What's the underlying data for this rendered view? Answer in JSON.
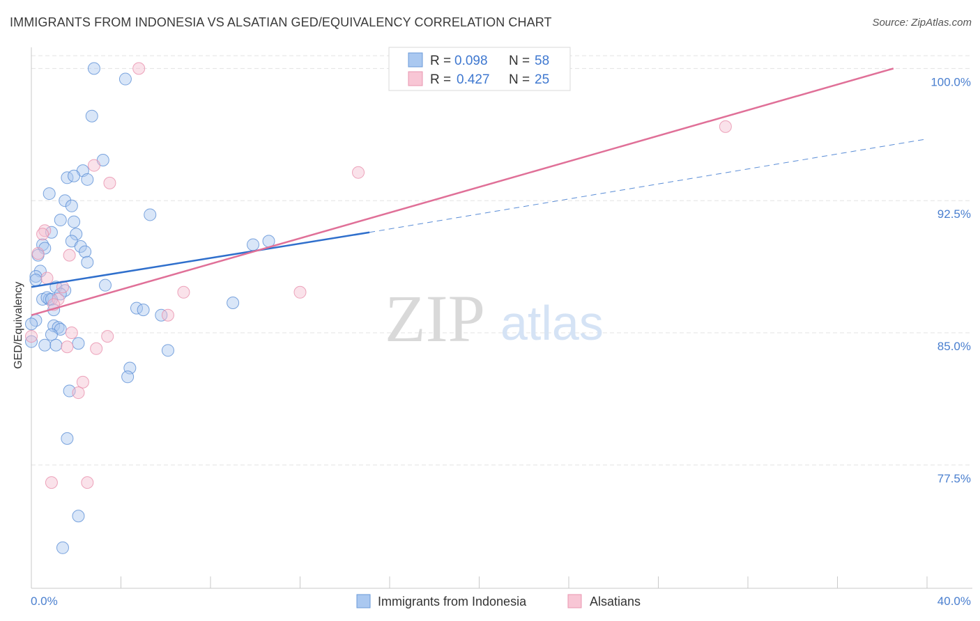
{
  "header": {
    "title": "IMMIGRANTS FROM INDONESIA VS ALSATIAN GED/EQUIVALENCY CORRELATION CHART",
    "source": "Source: ZipAtlas.com"
  },
  "watermark": {
    "zip": "ZIP",
    "atlas": "atlas"
  },
  "colors": {
    "blue": "#5b8fd6",
    "blue_fill": "#aac8f0",
    "blue_line": "#2f6fcc",
    "pink": "#e88fab",
    "pink_fill": "#f5bfd0",
    "pink_line": "#e07098",
    "axis_text": "#4a7fcf",
    "grid": "#e3e3e3"
  },
  "legend_top": {
    "rows": [
      {
        "r_label": "R =",
        "r_value": "0.098",
        "n_label": "N =",
        "n_value": "58"
      },
      {
        "r_label": "R =",
        "r_value": "0.427",
        "n_label": "N =",
        "n_value": "25"
      }
    ]
  },
  "legend_bottom": {
    "items": [
      "Immigrants from Indonesia",
      "Alsatians"
    ]
  },
  "chart_data": {
    "type": "scatter",
    "title": "IMMIGRANTS FROM INDONESIA VS ALSATIAN GED/EQUIVALENCY CORRELATION CHART",
    "xlabel": "",
    "ylabel": "GED/Equivalency",
    "xlim": [
      0,
      40
    ],
    "ylim": [
      70.5,
      101.2
    ],
    "x_tick_labels": [
      "0.0%",
      "40.0%"
    ],
    "y_ticks": [
      77.5,
      85.0,
      92.5,
      100.0
    ],
    "y_tick_labels": [
      "77.5%",
      "85.0%",
      "92.5%",
      "100.0%"
    ],
    "grid": true,
    "legend_placement": "top-center",
    "series": [
      {
        "name": "Immigrants from Indonesia",
        "r": 0.098,
        "n": 58,
        "trend": {
          "x0": 0.0,
          "y0": 87.6,
          "x1": 15.1,
          "y1": 90.7,
          "dash_x1": 40.0,
          "dash_y1": 96.0
        },
        "points": [
          {
            "x": 2.8,
            "y": 100.0
          },
          {
            "x": 4.2,
            "y": 99.4
          },
          {
            "x": 2.7,
            "y": 97.3
          },
          {
            "x": 3.2,
            "y": 94.8
          },
          {
            "x": 2.3,
            "y": 94.2
          },
          {
            "x": 1.6,
            "y": 93.8
          },
          {
            "x": 2.5,
            "y": 93.7
          },
          {
            "x": 1.9,
            "y": 93.9
          },
          {
            "x": 0.8,
            "y": 92.9
          },
          {
            "x": 1.5,
            "y": 92.5
          },
          {
            "x": 1.8,
            "y": 92.2
          },
          {
            "x": 5.3,
            "y": 91.7
          },
          {
            "x": 1.3,
            "y": 91.4
          },
          {
            "x": 1.9,
            "y": 91.3
          },
          {
            "x": 0.9,
            "y": 90.7
          },
          {
            "x": 2.0,
            "y": 90.6
          },
          {
            "x": 1.8,
            "y": 90.2
          },
          {
            "x": 0.5,
            "y": 90.0
          },
          {
            "x": 2.2,
            "y": 89.9
          },
          {
            "x": 0.6,
            "y": 89.8
          },
          {
            "x": 2.4,
            "y": 89.6
          },
          {
            "x": 0.3,
            "y": 89.4
          },
          {
            "x": 2.5,
            "y": 89.0
          },
          {
            "x": 0.4,
            "y": 88.5
          },
          {
            "x": 0.2,
            "y": 88.2
          },
          {
            "x": 0.2,
            "y": 88.0
          },
          {
            "x": 3.3,
            "y": 87.7
          },
          {
            "x": 1.1,
            "y": 87.6
          },
          {
            "x": 1.5,
            "y": 87.4
          },
          {
            "x": 1.3,
            "y": 87.2
          },
          {
            "x": 0.5,
            "y": 86.9
          },
          {
            "x": 0.8,
            "y": 86.9
          },
          {
            "x": 0.7,
            "y": 87.0
          },
          {
            "x": 0.9,
            "y": 86.9
          },
          {
            "x": 9.0,
            "y": 86.7
          },
          {
            "x": 1.0,
            "y": 86.3
          },
          {
            "x": 4.7,
            "y": 86.4
          },
          {
            "x": 5.0,
            "y": 86.3
          },
          {
            "x": 5.8,
            "y": 86.0
          },
          {
            "x": 0.2,
            "y": 85.7
          },
          {
            "x": 0.0,
            "y": 85.5
          },
          {
            "x": 1.0,
            "y": 85.4
          },
          {
            "x": 1.2,
            "y": 85.3
          },
          {
            "x": 1.3,
            "y": 85.2
          },
          {
            "x": 0.9,
            "y": 84.9
          },
          {
            "x": 0.0,
            "y": 84.5
          },
          {
            "x": 2.1,
            "y": 84.4
          },
          {
            "x": 0.6,
            "y": 84.3
          },
          {
            "x": 1.1,
            "y": 84.3
          },
          {
            "x": 6.1,
            "y": 84.0
          },
          {
            "x": 4.4,
            "y": 83.0
          },
          {
            "x": 4.3,
            "y": 82.5
          },
          {
            "x": 1.7,
            "y": 81.7
          },
          {
            "x": 1.6,
            "y": 79.0
          },
          {
            "x": 2.1,
            "y": 74.6
          },
          {
            "x": 1.4,
            "y": 72.8
          },
          {
            "x": 9.9,
            "y": 90.0
          },
          {
            "x": 10.6,
            "y": 90.2
          }
        ]
      },
      {
        "name": "Alsatians",
        "r": 0.427,
        "n": 25,
        "trend": {
          "x0": 0.0,
          "y0": 86.0,
          "x1": 38.5,
          "y1": 100.0
        },
        "points": [
          {
            "x": 4.8,
            "y": 100.0
          },
          {
            "x": 31.0,
            "y": 96.7
          },
          {
            "x": 14.6,
            "y": 94.1
          },
          {
            "x": 2.8,
            "y": 94.5
          },
          {
            "x": 3.5,
            "y": 93.5
          },
          {
            "x": 0.6,
            "y": 90.8
          },
          {
            "x": 0.5,
            "y": 90.6
          },
          {
            "x": 1.7,
            "y": 89.4
          },
          {
            "x": 0.3,
            "y": 89.5
          },
          {
            "x": 0.7,
            "y": 88.1
          },
          {
            "x": 1.4,
            "y": 87.6
          },
          {
            "x": 6.8,
            "y": 87.3
          },
          {
            "x": 12.0,
            "y": 87.3
          },
          {
            "x": 1.2,
            "y": 86.9
          },
          {
            "x": 1.0,
            "y": 86.6
          },
          {
            "x": 6.1,
            "y": 86.0
          },
          {
            "x": 1.8,
            "y": 85.0
          },
          {
            "x": 3.4,
            "y": 84.8
          },
          {
            "x": 0.0,
            "y": 84.8
          },
          {
            "x": 1.6,
            "y": 84.2
          },
          {
            "x": 2.9,
            "y": 84.1
          },
          {
            "x": 2.3,
            "y": 82.2
          },
          {
            "x": 2.1,
            "y": 81.6
          },
          {
            "x": 0.9,
            "y": 76.5
          },
          {
            "x": 2.5,
            "y": 76.5
          }
        ]
      }
    ]
  }
}
